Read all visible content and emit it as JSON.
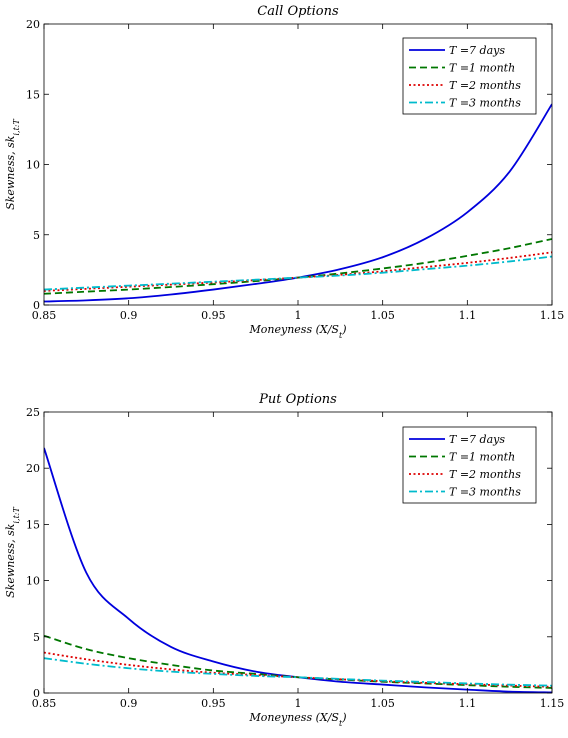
{
  "chart_data": [
    {
      "type": "line",
      "title": "Call Options",
      "xlabel": "Moneyness (X/S_t)",
      "ylabel": "Skewness, sk_{i,t:T}",
      "xlim": [
        0.85,
        1.15
      ],
      "ylim": [
        0,
        20
      ],
      "xticks": [
        "0.85",
        "0.9",
        "0.95",
        "1",
        "1.05",
        "1.1",
        "1.15"
      ],
      "yticks": [
        "0",
        "5",
        "10",
        "15",
        "20"
      ],
      "grid": false,
      "legend_position": "top-right",
      "x": [
        0.85,
        0.875,
        0.9,
        0.925,
        0.95,
        0.975,
        1.0,
        1.025,
        1.05,
        1.075,
        1.1,
        1.125,
        1.15
      ],
      "series": [
        {
          "name": "T =7 days",
          "color": "#0000dd",
          "dash": "solid",
          "values": [
            0.25,
            0.33,
            0.48,
            0.75,
            1.1,
            1.5,
            1.95,
            2.55,
            3.4,
            4.7,
            6.6,
            9.5,
            14.3
          ]
        },
        {
          "name": "T =1 month",
          "color": "#007700",
          "dash": "dashed",
          "values": [
            0.8,
            0.95,
            1.1,
            1.28,
            1.48,
            1.7,
            1.95,
            2.25,
            2.6,
            3.0,
            3.5,
            4.05,
            4.7
          ]
        },
        {
          "name": "T =2 months",
          "color": "#dd0000",
          "dash": "dotted",
          "values": [
            1.0,
            1.15,
            1.3,
            1.45,
            1.6,
            1.77,
            1.95,
            2.15,
            2.4,
            2.7,
            3.0,
            3.35,
            3.75
          ]
        },
        {
          "name": "T =3 months",
          "color": "#00bbcc",
          "dash": "dashdot",
          "values": [
            1.1,
            1.24,
            1.38,
            1.52,
            1.66,
            1.8,
            1.95,
            2.1,
            2.3,
            2.55,
            2.8,
            3.1,
            3.45
          ]
        }
      ]
    },
    {
      "type": "line",
      "title": "Put Options",
      "xlabel": "Moneyness (X/S_t)",
      "ylabel": "Skewness, sk_{i,t:T}",
      "xlim": [
        0.85,
        1.15
      ],
      "ylim": [
        0,
        25
      ],
      "xticks": [
        "0.85",
        "0.9",
        "0.95",
        "1",
        "1.05",
        "1.1",
        "1.15"
      ],
      "yticks": [
        "0",
        "5",
        "10",
        "15",
        "20",
        "25"
      ],
      "grid": false,
      "legend_position": "top-right",
      "x": [
        0.85,
        0.875,
        0.9,
        0.925,
        0.95,
        0.975,
        1.0,
        1.025,
        1.05,
        1.075,
        1.1,
        1.125,
        1.15
      ],
      "series": [
        {
          "name": "T =7 days",
          "color": "#0000dd",
          "dash": "solid",
          "values": [
            21.8,
            10.7,
            6.6,
            4.1,
            2.8,
            1.9,
            1.4,
            1.0,
            0.75,
            0.5,
            0.3,
            0.12,
            0.05
          ]
        },
        {
          "name": "T =1 month",
          "color": "#007700",
          "dash": "dashed",
          "values": [
            5.1,
            3.9,
            3.1,
            2.5,
            2.0,
            1.7,
            1.4,
            1.2,
            1.0,
            0.85,
            0.7,
            0.55,
            0.45
          ]
        },
        {
          "name": "T =2 months",
          "color": "#dd0000",
          "dash": "dotted",
          "values": [
            3.6,
            3.0,
            2.5,
            2.1,
            1.8,
            1.6,
            1.4,
            1.22,
            1.05,
            0.9,
            0.78,
            0.66,
            0.55
          ]
        },
        {
          "name": "T =3 months",
          "color": "#00bbcc",
          "dash": "dashdot",
          "values": [
            3.1,
            2.6,
            2.2,
            1.9,
            1.7,
            1.52,
            1.4,
            1.25,
            1.1,
            0.98,
            0.85,
            0.74,
            0.65
          ]
        }
      ]
    }
  ]
}
